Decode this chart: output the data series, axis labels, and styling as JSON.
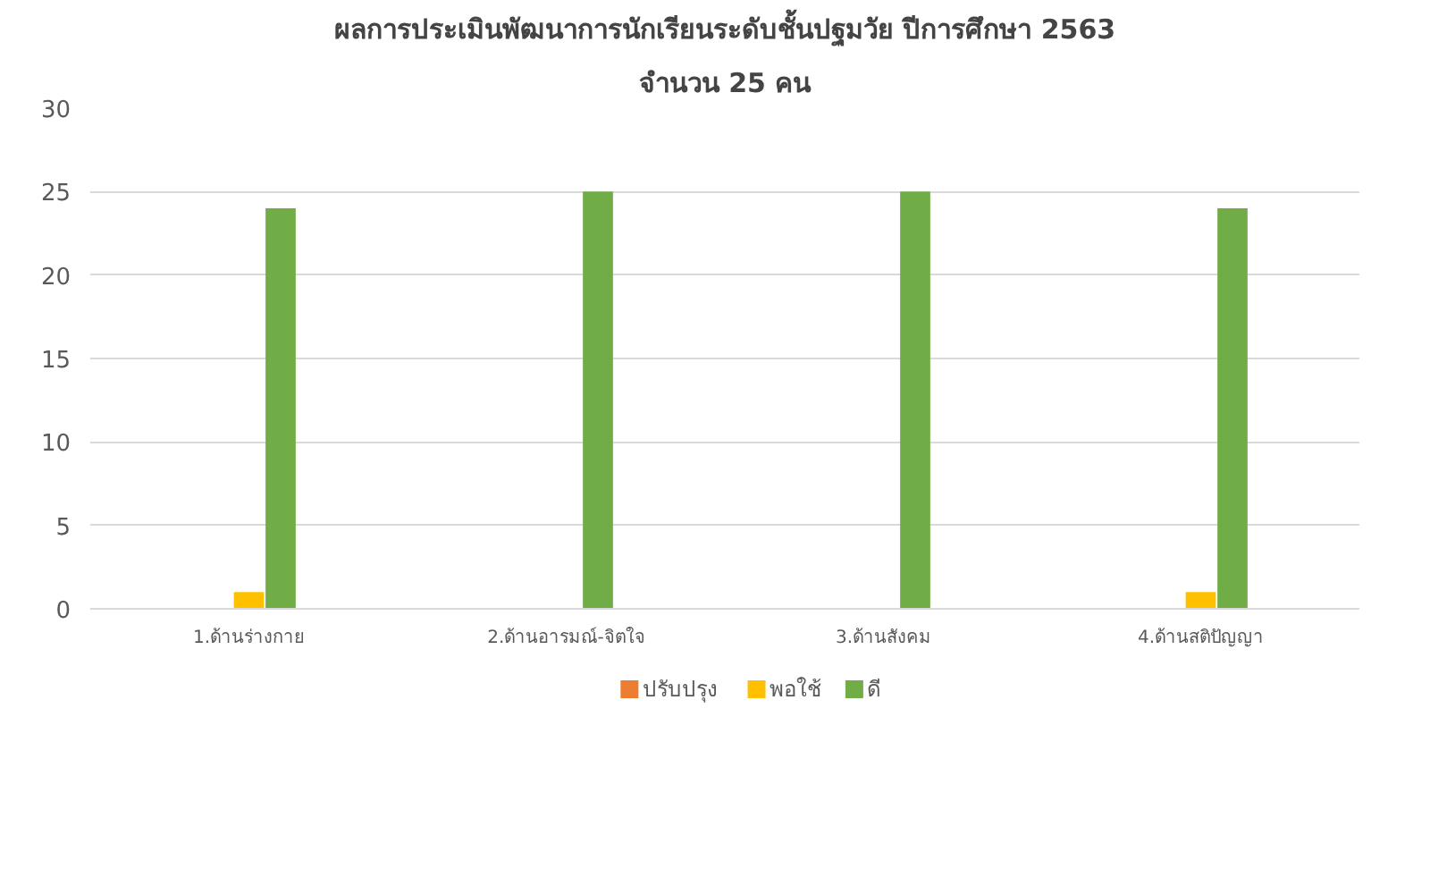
{
  "chart_data": {
    "type": "bar",
    "title": "ผลการประเมินพัฒนาการนักเรียนระดับชั้นปฐมวัย ปีการศึกษา 2563",
    "subtitle": "จำนวน 25 คน",
    "categories": [
      "1.ด้านร่างกาย",
      "2.ด้านอารมณ์-จิตใจ",
      "3.ด้านสังคม",
      "4.ด้านสติปัญญา"
    ],
    "series": [
      {
        "name": "ปรับปรุง",
        "color": "#ed7d31",
        "values": [
          0,
          0,
          0,
          0
        ]
      },
      {
        "name": "พอใช้",
        "color": "#ffc000",
        "values": [
          1,
          0,
          0,
          1
        ]
      },
      {
        "name": "ดี",
        "color": "#70ad47",
        "values": [
          24,
          25,
          25,
          24
        ]
      }
    ],
    "ylim": [
      0,
      30
    ],
    "yticks": [
      0,
      5,
      10,
      15,
      20,
      25,
      30
    ],
    "grid": "y",
    "legend": "bottom"
  }
}
